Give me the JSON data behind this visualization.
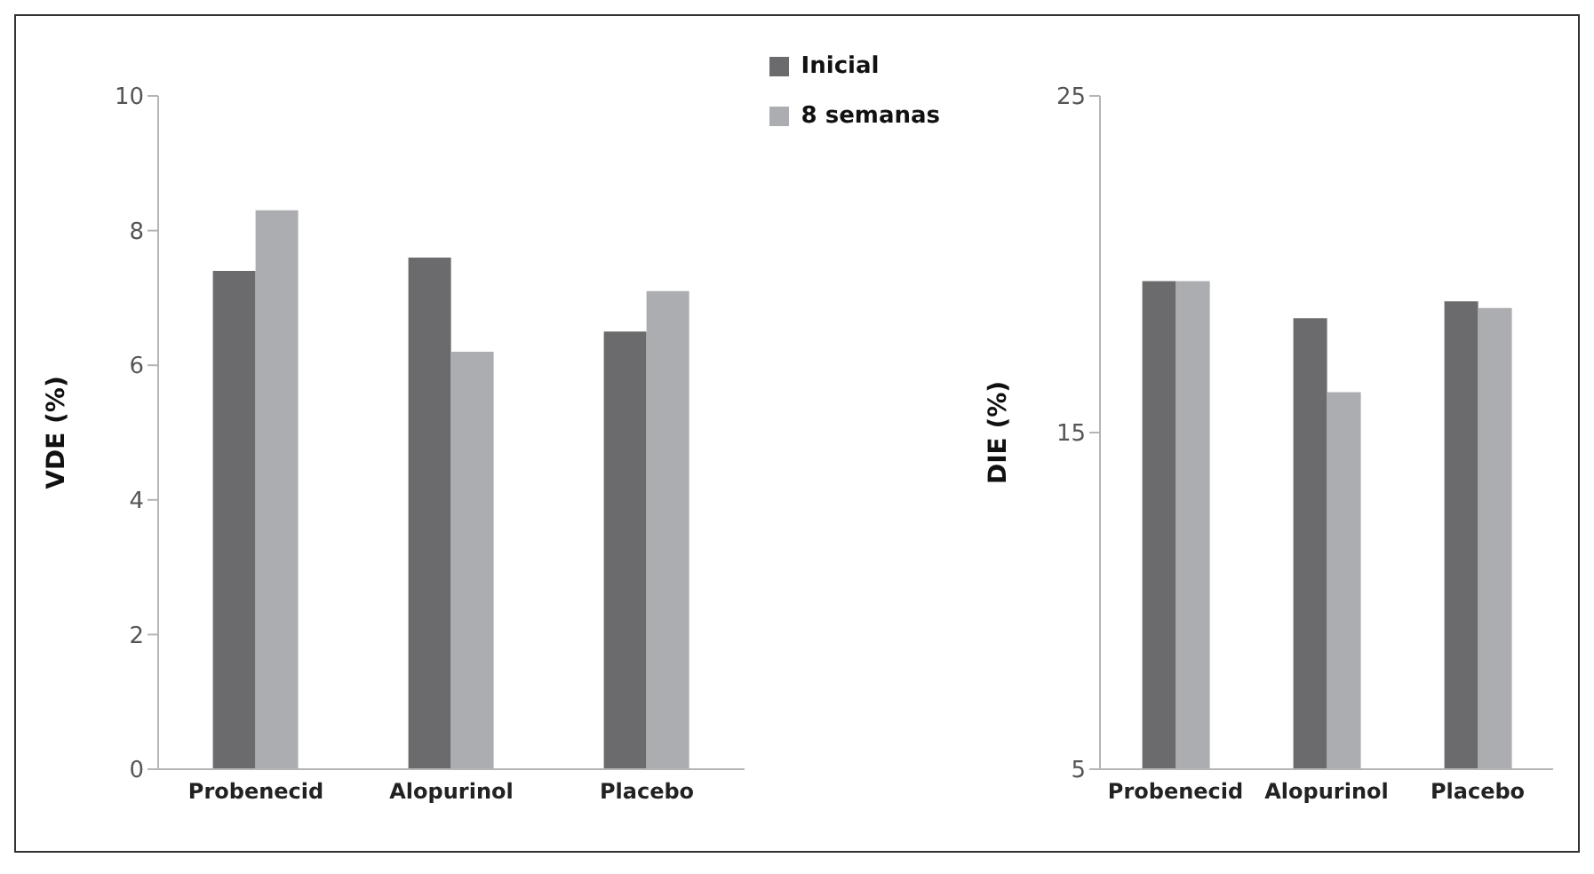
{
  "chart_data": [
    {
      "type": "bar",
      "ylabel": "VDE  (%)",
      "categories": [
        "Probenecid",
        "Alopurinol",
        "Placebo"
      ],
      "series": [
        {
          "name": "Inicial",
          "color": "#6b6b6e",
          "values": [
            7.4,
            7.6,
            6.5
          ]
        },
        {
          "name": "8 semanas",
          "color": "#acadb0",
          "values": [
            8.3,
            6.2,
            7.1
          ]
        }
      ],
      "ylim": [
        0,
        10
      ],
      "yticks": [
        0,
        2,
        4,
        6,
        8,
        10
      ],
      "legend": "top right"
    },
    {
      "type": "bar",
      "ylabel": "DIE (%)",
      "categories": [
        "Probenecid",
        "Alopurinol",
        "Placebo"
      ],
      "series": [
        {
          "color": "#6b6b6e",
          "values": [
            19.5,
            18.4,
            18.9
          ]
        },
        {
          "color": "#acadb0",
          "values": [
            19.5,
            16.2,
            18.7
          ]
        }
      ],
      "ylim": [
        5,
        25
      ],
      "yticks": [
        5,
        15,
        25
      ]
    }
  ]
}
